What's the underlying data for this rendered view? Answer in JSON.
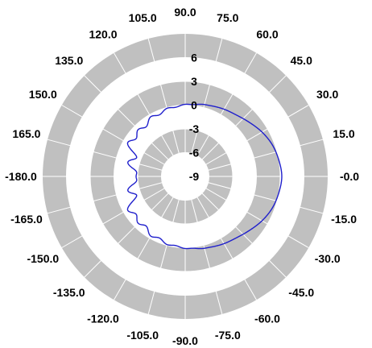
{
  "chart_data": {
    "type": "polar",
    "title": "",
    "angle_ticks": [
      "-0.0",
      "15.0",
      "30.0",
      "45.0",
      "60.0",
      "75.0",
      "90.0",
      "105.0",
      "120.0",
      "135.0",
      "150.0",
      "165.0",
      "-180.0",
      "-165.0",
      "-150.0",
      "-135.0",
      "-120.0",
      "-105.0",
      "-90.0",
      "-75.0",
      "-60.0",
      "-45.0",
      "-30.0",
      "-15.0"
    ],
    "angle_tick_values_deg": [
      0,
      15,
      30,
      45,
      60,
      75,
      90,
      105,
      120,
      135,
      150,
      165,
      180,
      195,
      210,
      225,
      240,
      255,
      270,
      285,
      300,
      315,
      330,
      345
    ],
    "radial_ticks": [
      "6",
      "3",
      "0",
      "-3",
      "-6",
      "-9"
    ],
    "radial_tick_values": [
      6,
      3,
      0,
      -3,
      -6,
      -9
    ],
    "r_range": [
      -9,
      9
    ],
    "grid": true,
    "colors": {
      "band": "#c0c0c0",
      "grid": "#ffffff",
      "series": "#1f1fcc"
    },
    "series": [
      {
        "angles_deg": [
          0,
          10,
          20,
          30,
          40,
          50,
          60,
          70,
          80,
          90,
          100,
          110,
          120,
          130,
          140,
          150,
          160,
          170,
          180,
          190,
          200,
          210,
          220,
          230,
          240,
          250,
          260,
          270,
          280,
          290,
          300,
          310,
          320,
          330,
          340,
          350
        ],
        "values": [
          3.2,
          3.0,
          2.7,
          2.2,
          1.6,
          1.1,
          0.8,
          0.5,
          0.3,
          0.1,
          0.0,
          -0.2,
          -0.3,
          -0.6,
          -0.6,
          -0.6,
          -1.8,
          -1.4,
          -2.8,
          -1.4,
          -1.8,
          -0.6,
          -0.6,
          -0.6,
          -0.3,
          -0.2,
          0.0,
          0.1,
          0.3,
          0.5,
          0.8,
          1.1,
          1.6,
          2.2,
          2.7,
          3.0
        ]
      }
    ]
  }
}
